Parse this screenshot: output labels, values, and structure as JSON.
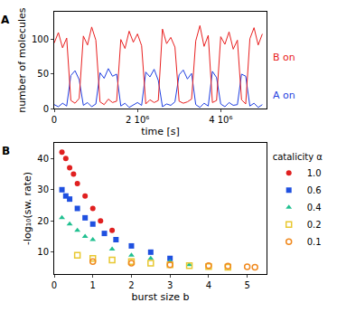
{
  "chart_data": [
    {
      "type": "line",
      "title": "A",
      "x_label": "time [s]",
      "y_label": "number of molecules",
      "x": [
        0,
        100000,
        200000,
        300000,
        400000,
        500000,
        600000,
        700000,
        800000,
        900000,
        1000000,
        1100000,
        1200000,
        1300000,
        1400000,
        1500000,
        1600000,
        1700000,
        1800000,
        1900000,
        2000000,
        2100000,
        2200000,
        2300000,
        2400000,
        2500000,
        2600000,
        2700000,
        2800000,
        2900000,
        3000000,
        3100000,
        3200000,
        3300000,
        3400000,
        3500000,
        3600000,
        3700000,
        3800000,
        3900000,
        4000000,
        4100000,
        4200000,
        4300000,
        4400000,
        4500000,
        4600000,
        4700000,
        4800000,
        4900000,
        5000000
      ],
      "xlim": [
        0,
        5100000
      ],
      "xticks": [
        0,
        {
          "value": 2000000,
          "label": "2 10⁶"
        },
        {
          "value": 4000000,
          "label": "4 10⁶"
        }
      ],
      "ylim": [
        0,
        140
      ],
      "yticks": [
        0,
        50,
        100
      ],
      "grid": false,
      "series": [
        {
          "name": "A on",
          "color": "#1f3fe0",
          "values": [
            6,
            3,
            8,
            4,
            48,
            55,
            42,
            5,
            9,
            3,
            7,
            52,
            44,
            58,
            47,
            50,
            4,
            8,
            2,
            6,
            9,
            5,
            53,
            46,
            57,
            41,
            3,
            7,
            5,
            10,
            49,
            56,
            43,
            51,
            6,
            2,
            8,
            4,
            54,
            45,
            7,
            3,
            9,
            5,
            6,
            50,
            47,
            4,
            8,
            2,
            6
          ]
        },
        {
          "name": "B on",
          "color": "#e82020",
          "values": [
            95,
            110,
            88,
            102,
            12,
            8,
            15,
            105,
            92,
            118,
            99,
            10,
            6,
            14,
            9,
            11,
            100,
            87,
            112,
            96,
            108,
            91,
            7,
            13,
            9,
            12,
            115,
            94,
            103,
            89,
            11,
            8,
            10,
            14,
            98,
            120,
            90,
            106,
            9,
            12,
            104,
            93,
            111,
            86,
            99,
            13,
            7,
            101,
            117,
            92,
            108
          ]
        }
      ]
    },
    {
      "type": "scatter",
      "title": "B",
      "x_label": "burst size b",
      "y_label": "-log₁₀(sw. rate)",
      "legend": "right",
      "legend_title": "catalicity α",
      "xlim": [
        0,
        5.5
      ],
      "xticks": [
        0,
        1,
        2,
        3,
        4,
        5
      ],
      "ylim": [
        3,
        45
      ],
      "yticks": [
        10,
        20,
        30,
        40
      ],
      "grid": false,
      "series": [
        {
          "name": "1.0",
          "color": "#e02020",
          "marker": "circle",
          "x": [
            0.2,
            0.3,
            0.4,
            0.5,
            0.6,
            0.8,
            1.0,
            1.2,
            1.5
          ],
          "values": [
            42,
            40,
            37,
            35,
            32,
            28,
            24,
            20,
            17
          ]
        },
        {
          "name": "0.6",
          "color": "#1f50e0",
          "marker": "square",
          "x": [
            0.2,
            0.3,
            0.4,
            0.6,
            0.8,
            1.0,
            1.3,
            1.6,
            2.0,
            2.5,
            3.0
          ],
          "values": [
            30,
            28,
            27,
            24,
            21,
            19,
            16,
            14,
            12,
            10,
            8
          ]
        },
        {
          "name": "0.4",
          "color": "#20c090",
          "marker": "triangle-up",
          "x": [
            0.2,
            0.4,
            0.6,
            0.8,
            1.0,
            1.5,
            2.0,
            2.5,
            3.0,
            3.5
          ],
          "values": [
            21,
            19,
            17,
            15,
            14,
            11,
            9,
            8,
            7,
            6
          ]
        },
        {
          "name": "0.2",
          "color": "#e8c830",
          "marker": "square-open",
          "x": [
            0.6,
            1.0,
            1.5,
            2.0,
            2.5,
            3.0,
            3.5,
            4.0,
            4.5
          ],
          "values": [
            9,
            8,
            7.5,
            7,
            6.5,
            6,
            5.7,
            5.4,
            5.2
          ]
        },
        {
          "name": "0.1",
          "color": "#f08a20",
          "marker": "circle-open",
          "x": [
            1.0,
            2.0,
            3.0,
            4.0,
            4.5,
            5.0,
            5.2
          ],
          "values": [
            7,
            6.5,
            6,
            5.7,
            5.5,
            5.3,
            5.2
          ]
        }
      ]
    }
  ]
}
